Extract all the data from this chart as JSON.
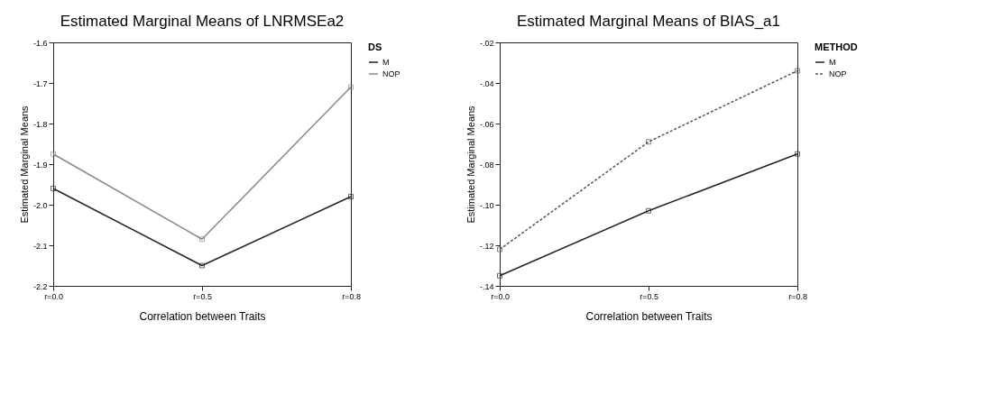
{
  "chart_data": [
    {
      "type": "line",
      "title": "Estimated Marginal Means of LNRMSEa2",
      "xlabel": "Correlation between Traits",
      "ylabel": "Estimated Marginal Means",
      "legend_title": "DS",
      "categories": [
        "r=0.0",
        "r=0.5",
        "r=0.8"
      ],
      "series": [
        {
          "name": "M",
          "color": "#222222",
          "line_style": "solid",
          "values": [
            -1.96,
            -2.15,
            -1.98
          ]
        },
        {
          "name": "NOP",
          "color": "#8a8a8a",
          "line_style": "solid",
          "values": [
            -1.875,
            -2.085,
            -1.71
          ]
        }
      ],
      "ylim": [
        -2.2,
        -1.6
      ],
      "yticks": [
        {
          "value": -2.2,
          "label": "-2.2"
        },
        {
          "value": -2.1,
          "label": "-2.1"
        },
        {
          "value": -2,
          "label": "-2.0"
        },
        -1.9,
        -1.8,
        -1.7,
        -1.6
      ],
      "marker": "square",
      "legend": "right",
      "grid": false
    },
    {
      "type": "line",
      "title": "Estimated Marginal Means of BIAS_a1",
      "xlabel": "Correlation between Traits",
      "ylabel": "Estimated Marginal Means",
      "legend_title": "METHOD",
      "categories": [
        "r=0.0",
        "r=0.5",
        "r=0.8"
      ],
      "series": [
        {
          "name": "M",
          "color": "#222222",
          "line_style": "solid",
          "values": [
            -0.135,
            -0.103,
            -0.075
          ]
        },
        {
          "name": "NOP",
          "color": "#555555",
          "line_style": "dashed",
          "values": [
            -0.122,
            -0.069,
            -0.034
          ]
        }
      ],
      "ylim": [
        -0.14,
        -0.02
      ],
      "yticks": [
        {
          "value": -0.14,
          "label": "-.14"
        },
        {
          "value": -0.12,
          "label": "-.12"
        },
        {
          "value": -0.1,
          "label": "-.10"
        },
        {
          "value": -0.08,
          "label": "-.08"
        },
        {
          "value": -0.06,
          "label": "-.06"
        },
        {
          "value": -0.04,
          "label": "-.04"
        },
        {
          "value": -0.02,
          "label": "-.02"
        }
      ],
      "marker": "square",
      "legend": "right",
      "grid": false
    }
  ]
}
